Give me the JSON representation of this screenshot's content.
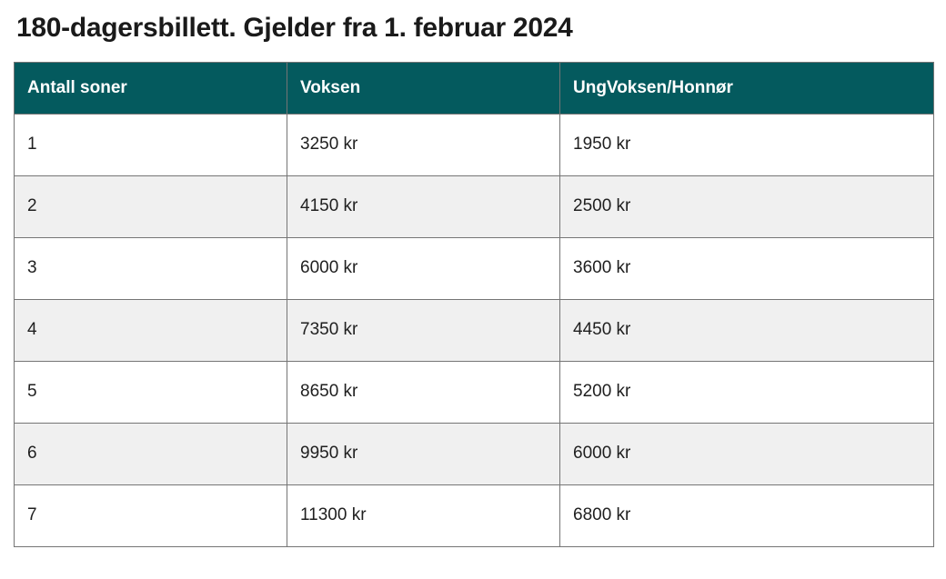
{
  "page": {
    "title": "180-dagersbillett. Gjelder fra 1. februar 2024"
  },
  "table": {
    "columns": [
      "Antall soner",
      "Voksen",
      "UngVoksen/Honnør"
    ],
    "rows": [
      [
        "1",
        "3250 kr",
        "1950 kr"
      ],
      [
        "2",
        "4150 kr",
        "2500 kr"
      ],
      [
        "3",
        "6000 kr",
        "3600 kr"
      ],
      [
        "4",
        "7350 kr",
        "4450 kr"
      ],
      [
        "5",
        "8650 kr",
        "5200 kr"
      ],
      [
        "6",
        "9950 kr",
        "6000 kr"
      ],
      [
        "7",
        "11300 kr",
        "6800 kr"
      ]
    ]
  },
  "colors": {
    "header_bg": "#045a5e",
    "header_text": "#ffffff",
    "row_alt_bg": "#f0f0f0",
    "border": "#757575",
    "title_text": "#1a1a1a"
  },
  "chart_data": {
    "type": "table",
    "title": "180-dagersbillett. Gjelder fra 1. februar 2024",
    "categories": [
      1,
      2,
      3,
      4,
      5,
      6,
      7
    ],
    "series": [
      {
        "name": "Voksen",
        "values": [
          3250,
          4150,
          6000,
          7350,
          8650,
          9950,
          11300
        ]
      },
      {
        "name": "UngVoksen/Honnør",
        "values": [
          1950,
          2500,
          3600,
          4450,
          5200,
          6000,
          6800
        ]
      }
    ],
    "unit": "kr",
    "xlabel": "Antall soner"
  }
}
